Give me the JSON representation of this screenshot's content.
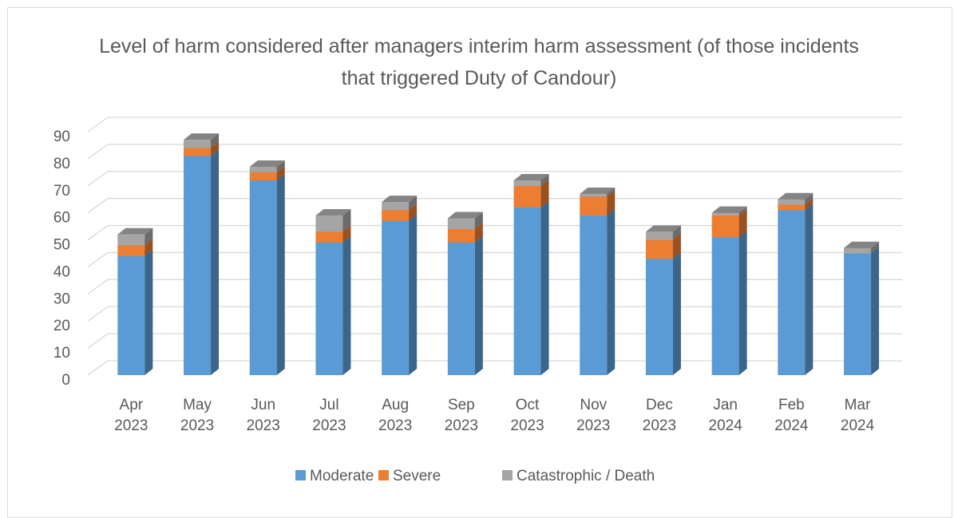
{
  "chart_data": {
    "type": "bar3d_stacked",
    "title": "Level of harm considered after managers interim harm assessment  (of those incidents that triggered Duty of Candour)",
    "categories": [
      "Apr 2023",
      "May 2023",
      "Jun 2023",
      "Jul 2023",
      "Aug 2023",
      "Sep 2023",
      "Oct 2023",
      "Nov 2023",
      "Dec 2023",
      "Jan 2024",
      "Feb 2024",
      "Mar 2024"
    ],
    "series": [
      {
        "name": "Moderate",
        "color": "#5b9bd5",
        "values": [
          44,
          81,
          72,
          49,
          57,
          49,
          62,
          59,
          43,
          51,
          61,
          45
        ]
      },
      {
        "name": "Severe",
        "color": "#ed7d31",
        "values": [
          4,
          3,
          3,
          4,
          4,
          5,
          8,
          7,
          7,
          8,
          2,
          0
        ]
      },
      {
        "name": "Catastrophic / Death",
        "color": "#a5a5a5",
        "values": [
          4,
          3,
          2,
          6,
          3,
          4,
          2,
          1,
          3,
          1,
          2,
          2
        ]
      }
    ],
    "ylim": [
      0,
      90
    ],
    "yticks": [
      0,
      10,
      20,
      30,
      40,
      50,
      60,
      70,
      80,
      90
    ],
    "grid": true,
    "legend": "bottom"
  }
}
